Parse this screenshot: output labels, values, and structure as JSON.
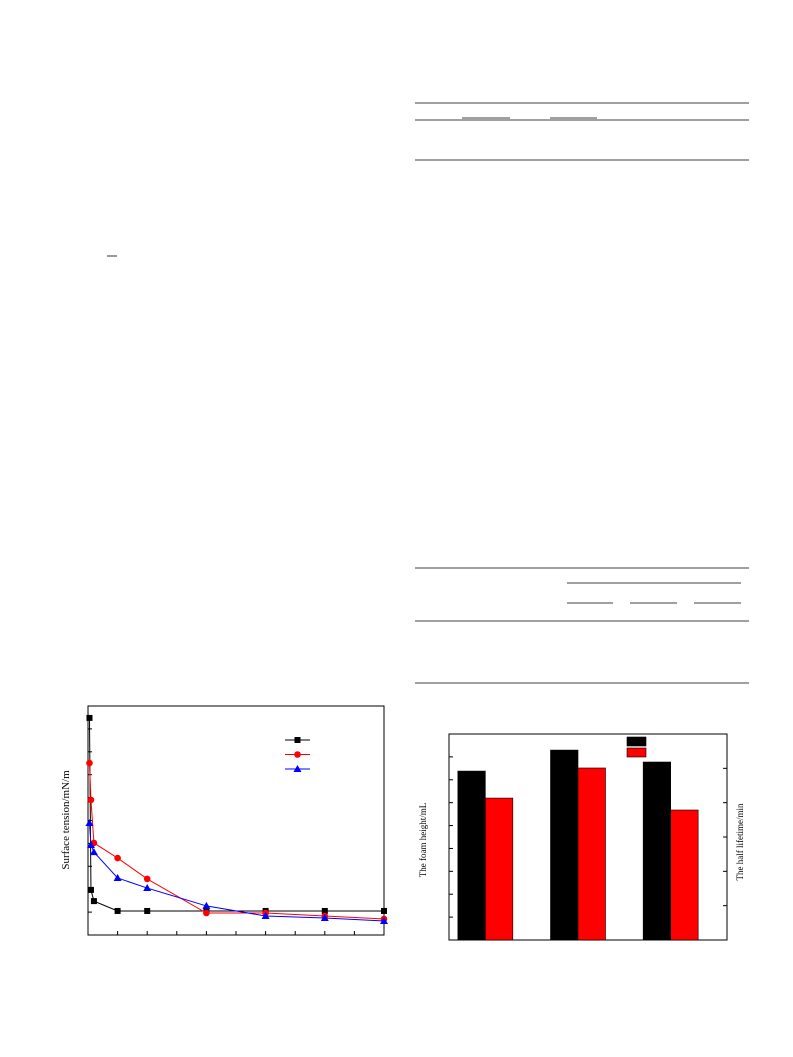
{
  "chart_data": [
    {
      "type": "line",
      "ylabel": "Surface tension/mN/m",
      "x": [
        0.5,
        1,
        2,
        10,
        20,
        40,
        60,
        80,
        100
      ],
      "xlim": [
        0,
        100
      ],
      "ylim": [
        0,
        100
      ],
      "series": [
        {
          "color": "#000000",
          "marker": "square",
          "values": [
            94.8,
            19.7,
            14.8,
            10.5,
            10.5,
            10.5,
            10.5,
            10.5,
            10.5
          ]
        },
        {
          "color": "#ff0000",
          "marker": "circle",
          "values": [
            75.1,
            59.0,
            40.2,
            33.6,
            24.5,
            9.6,
            9.6,
            8.3,
            7.0
          ]
        },
        {
          "color": "#0000ff",
          "marker": "triangle",
          "values": [
            48.9,
            39.3,
            36.2,
            24.9,
            20.5,
            12.7,
            8.3,
            7.4,
            6.1
          ]
        }
      ]
    },
    {
      "type": "bar",
      "ylabel": "The foam height/mL",
      "y2label": "The half lifetime/min",
      "categories": [
        null,
        null,
        null
      ],
      "ylim": [
        0,
        100
      ],
      "y2lim": [
        0,
        100
      ],
      "series": [
        {
          "color": "#000000",
          "values": [
            82.0,
            92.2,
            86.4
          ]
        },
        {
          "color": "#ff0000",
          "axis": "y2",
          "values": [
            68.9,
            83.5,
            63.1
          ]
        }
      ]
    }
  ]
}
